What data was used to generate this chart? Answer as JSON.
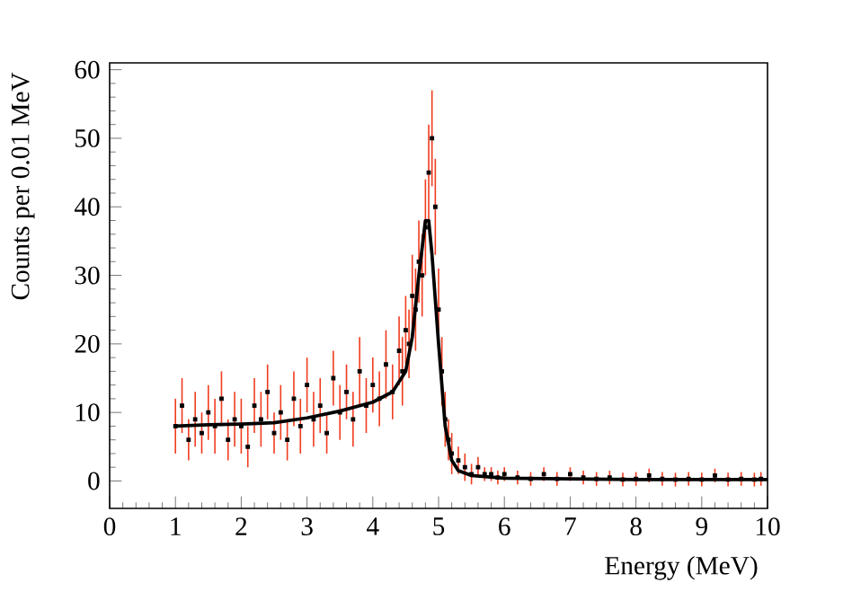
{
  "chart_data": {
    "type": "scatter",
    "xlabel": "Energy (MeV)",
    "ylabel": "Counts per 0.01 MeV",
    "xlim": [
      0,
      10
    ],
    "ylim": [
      -4,
      61
    ],
    "xticks": [
      0,
      1,
      2,
      3,
      4,
      5,
      6,
      7,
      8,
      9,
      10
    ],
    "yticks": [
      0,
      10,
      20,
      30,
      40,
      50,
      60
    ],
    "grid": false,
    "series": [
      {
        "type": "scatter",
        "color": "#000000",
        "marker": "square",
        "x": [
          1.0,
          1.1,
          1.2,
          1.3,
          1.4,
          1.5,
          1.6,
          1.7,
          1.8,
          1.9,
          2.0,
          2.1,
          2.2,
          2.3,
          2.4,
          2.5,
          2.6,
          2.7,
          2.8,
          2.9,
          3.0,
          3.1,
          3.2,
          3.3,
          3.4,
          3.5,
          3.6,
          3.7,
          3.8,
          3.9,
          4.0,
          4.1,
          4.2,
          4.3,
          4.4,
          4.45,
          4.5,
          4.55,
          4.6,
          4.65,
          4.7,
          4.75,
          4.8,
          4.85,
          4.9,
          4.95,
          5.0,
          5.05,
          5.1,
          5.15,
          5.2,
          5.3,
          5.4,
          5.5,
          5.6,
          5.7,
          5.8,
          5.9,
          6.0,
          6.2,
          6.4,
          6.6,
          6.8,
          7.0,
          7.2,
          7.4,
          7.6,
          7.8,
          8.0,
          8.2,
          8.4,
          8.6,
          8.8,
          9.0,
          9.2,
          9.4,
          9.6,
          9.8,
          9.9
        ],
        "values": [
          8,
          11,
          6,
          9,
          7,
          10,
          8,
          12,
          6,
          9,
          8,
          5,
          11,
          9,
          13,
          7,
          10,
          6,
          12,
          8,
          14,
          9,
          11,
          7,
          15,
          10,
          13,
          9,
          16,
          11,
          14,
          12,
          17,
          13,
          19,
          16,
          22,
          20,
          27,
          25,
          32,
          30,
          37,
          45,
          50,
          40,
          25,
          16,
          9,
          6,
          4,
          3,
          2,
          1,
          2,
          1,
          1,
          0.5,
          1,
          0.5,
          0.3,
          1,
          0.3,
          1,
          0.5,
          0.3,
          0.5,
          0.2,
          0.3,
          0.8,
          0.3,
          0.2,
          0.3,
          0.2,
          0.8,
          0.2,
          0.3,
          0.2,
          0.3
        ],
        "errors": [
          4,
          4,
          3,
          4,
          3,
          4,
          4,
          4,
          3,
          4,
          4,
          3,
          4,
          4,
          4,
          3,
          4,
          3,
          4,
          4,
          4,
          4,
          4,
          3,
          4,
          4,
          4,
          4,
          5,
          4,
          4,
          4,
          5,
          4,
          5,
          5,
          5,
          5,
          6,
          6,
          6,
          6,
          7,
          7,
          7,
          7,
          6,
          5,
          4,
          3,
          3,
          2,
          2,
          1.5,
          1.5,
          1,
          1,
          1,
          1,
          1,
          1,
          1,
          1,
          1,
          1,
          1,
          1,
          1,
          1,
          1,
          1,
          1,
          1,
          1,
          1,
          1,
          1,
          1,
          1
        ]
      },
      {
        "type": "line",
        "color": "#000000",
        "line_style": "solid",
        "x": [
          1.0,
          1.5,
          2.0,
          2.5,
          3.0,
          3.5,
          4.0,
          4.3,
          4.5,
          4.6,
          4.7,
          4.8,
          4.85,
          4.9,
          5.0,
          5.1,
          5.2,
          5.3,
          5.5,
          6.0,
          8.0,
          10.0
        ],
        "values": [
          8,
          8.2,
          8.3,
          8.5,
          9.2,
          10.2,
          11.5,
          13,
          16,
          21,
          30,
          38,
          38,
          33,
          20,
          8,
          3,
          1.5,
          0.8,
          0.4,
          0.2,
          0.2
        ]
      }
    ]
  }
}
